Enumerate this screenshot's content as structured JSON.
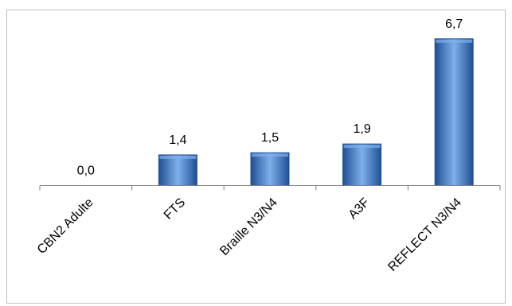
{
  "chart_data": {
    "type": "bar",
    "title": "",
    "xlabel": "",
    "ylabel": "",
    "categories": [
      "CBN2 Adulte",
      "FTS",
      "Braille N3/N4",
      "A3F",
      "REFLECT N3/N4"
    ],
    "values": [
      0.0,
      1.4,
      1.5,
      1.9,
      6.7
    ],
    "value_labels": [
      "0,0",
      "1,4",
      "1,5",
      "1,9",
      "6,7"
    ],
    "ylim": [
      0,
      7.6
    ],
    "grid": false,
    "legend": "none",
    "bar_color": "#3b74c4",
    "bar_color_dark": "#1f4f93",
    "bar_color_light": "#7fb0ec"
  }
}
